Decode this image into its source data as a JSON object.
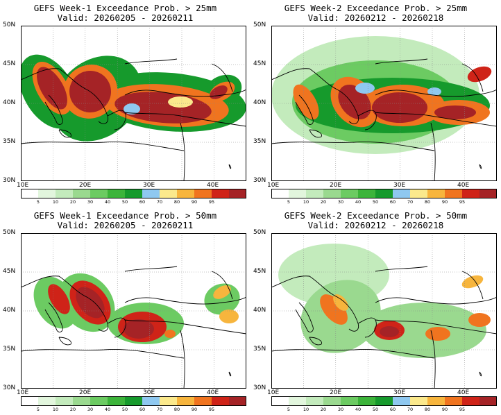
{
  "colorbar": {
    "ticks": [
      "5",
      "10",
      "20",
      "30",
      "40",
      "50",
      "60",
      "70",
      "80",
      "90",
      "95"
    ],
    "colors": [
      "#ffffff",
      "#e2f6dd",
      "#c3ebbc",
      "#9ad98f",
      "#6ccb62",
      "#3cb43a",
      "#169a2c",
      "#8fc8f0",
      "#fbe98c",
      "#f7b53d",
      "#f0741f",
      "#cf2318",
      "#a52326"
    ]
  },
  "axes": {
    "lat_labels": [
      "50N",
      "45N",
      "40N",
      "35N",
      "30N"
    ],
    "lon_labels": [
      "10E",
      "20E",
      "30E",
      "40E"
    ]
  },
  "panels": [
    {
      "title": "GEFS Week-1 Exceedance Prob. > 25mm",
      "valid": "Valid: 20260205 - 20260211"
    },
    {
      "title": "GEFS Week-2 Exceedance Prob. > 25mm",
      "valid": "Valid: 20260212 - 20260218"
    },
    {
      "title": "GEFS Week-1 Exceedance Prob. > 50mm",
      "valid": "Valid: 20260205 - 20260211"
    },
    {
      "title": "GEFS Week-2 Exceedance Prob. > 50mm",
      "valid": "Valid: 20260212 - 20260218"
    }
  ]
}
